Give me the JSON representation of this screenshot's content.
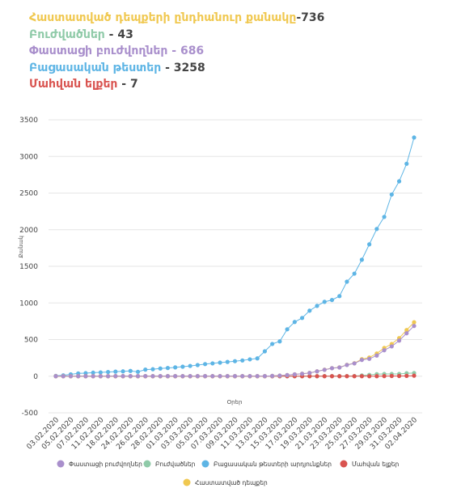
{
  "header": {
    "items": [
      {
        "label": "Հաստատված դեպքերի ընդհանուր քանակը",
        "value": "-736",
        "color": "#f0c850",
        "value_color": "#444444"
      },
      {
        "label": "Բուժվածներ",
        "value": " - 43",
        "color": "#8fcaa8",
        "value_color": "#444444"
      },
      {
        "label": "Փաստացի բուժվողներ",
        "value": " - 686",
        "color": "#a98fcc",
        "value_color": "#a98fcc"
      },
      {
        "label": "Բացասական թեստեր",
        "value": " - 3258",
        "color": "#5eb5e5",
        "value_color": "#444444"
      },
      {
        "label": "Մահվան ելքեր",
        "value": " - 7",
        "color": "#d9534f",
        "value_color": "#444444"
      }
    ]
  },
  "chart_data": {
    "type": "line",
    "xlabel": "Օրեր",
    "ylabel": "Քանակ",
    "categories": [
      "03.02.2020",
      null,
      "05.02.2020",
      null,
      "07.02.2020",
      null,
      "11.02.2020",
      null,
      "18.02.2020",
      null,
      "24.02.2020",
      null,
      "26.02.2020",
      null,
      "28.02.2020",
      null,
      "01.03.2020",
      null,
      "03.03.2020",
      null,
      "05.03.2020",
      null,
      "07.03.2020",
      null,
      "09.03.2020",
      null,
      "11.03.2020",
      null,
      "13.03.2020",
      null,
      "15.03.2020",
      null,
      "17.03.2020",
      null,
      "19.03.2020",
      null,
      "21.03.2020",
      null,
      "23.03.2020",
      null,
      "25.03.2020",
      null,
      "27.03.2020",
      null,
      "29.03.2020",
      null,
      "31.03.2020",
      null,
      "02.04.2020"
    ],
    "ylim": [
      -500,
      3500
    ],
    "yticks": [
      -500,
      0,
      500,
      1000,
      1500,
      2000,
      2500,
      3000,
      3500
    ],
    "grid": true,
    "series": [
      {
        "name": "Փաստացի բուժվողներ",
        "color": "#a98fcc",
        "values": [
          0,
          0,
          0,
          0,
          0,
          0,
          0,
          0,
          1,
          1,
          1,
          1,
          1,
          1,
          1,
          1,
          1,
          1,
          1,
          1,
          1,
          1,
          1,
          1,
          1,
          1,
          1,
          1,
          1,
          4,
          8,
          15,
          25,
          33,
          44,
          66,
          87,
          109,
          119,
          153,
          175,
          222,
          237,
          282,
          354,
          407,
          486,
          586,
          686
        ]
      },
      {
        "name": "Բուժվածներ",
        "color": "#8fcaa8",
        "values": [
          0,
          0,
          0,
          0,
          0,
          0,
          0,
          0,
          0,
          0,
          0,
          0,
          0,
          0,
          0,
          0,
          0,
          0,
          0,
          0,
          0,
          0,
          0,
          0,
          0,
          0,
          0,
          0,
          0,
          0,
          0,
          0,
          0,
          0,
          0,
          0,
          1,
          1,
          1,
          2,
          2,
          10,
          18,
          28,
          30,
          30,
          31,
          40,
          43
        ]
      },
      {
        "name": "Բացասական թեստերի արդյունքներ",
        "color": "#5eb5e5",
        "values": [
          5,
          12,
          25,
          38,
          42,
          48,
          52,
          57,
          62,
          66,
          72,
          60,
          90,
          95,
          105,
          112,
          120,
          130,
          140,
          152,
          165,
          175,
          185,
          195,
          205,
          215,
          230,
          243,
          340,
          440,
          475,
          640,
          740,
          795,
          894,
          960,
          1015,
          1040,
          1093,
          1290,
          1400,
          1590,
          1800,
          2010,
          2175,
          2480,
          2660,
          2900,
          3258
        ]
      },
      {
        "name": "Մահվան ելքեր",
        "color": "#d9534f",
        "values": [
          0,
          0,
          0,
          0,
          0,
          0,
          0,
          0,
          0,
          0,
          0,
          0,
          0,
          0,
          0,
          0,
          0,
          0,
          0,
          0,
          0,
          0,
          0,
          0,
          0,
          0,
          0,
          0,
          0,
          0,
          0,
          0,
          0,
          0,
          0,
          0,
          0,
          0,
          0,
          0,
          0,
          0,
          0,
          0,
          1,
          3,
          3,
          4,
          7
        ]
      },
      {
        "name": "Հաստատված դեպքեր",
        "color": "#f0c850",
        "values": [
          0,
          0,
          0,
          0,
          0,
          0,
          0,
          0,
          1,
          1,
          1,
          1,
          1,
          1,
          1,
          1,
          1,
          1,
          1,
          1,
          1,
          1,
          1,
          1,
          1,
          1,
          1,
          1,
          1,
          4,
          8,
          15,
          25,
          33,
          44,
          66,
          88,
          110,
          120,
          155,
          177,
          232,
          255,
          310,
          385,
          440,
          520,
          630,
          736
        ]
      }
    ]
  }
}
